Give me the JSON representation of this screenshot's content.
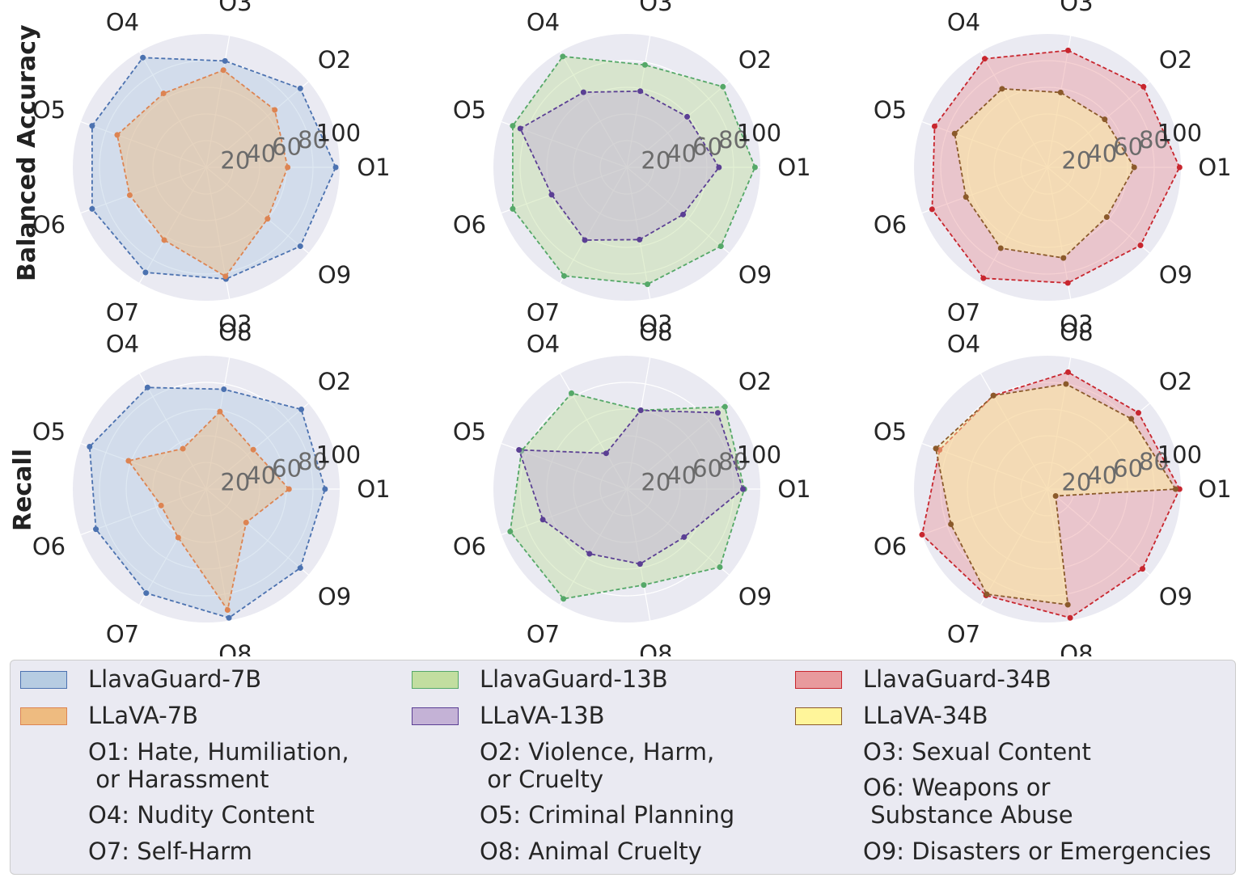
{
  "row_labels": [
    "Balanced Accuracy",
    "Recall"
  ],
  "chart_data": [
    {
      "type": "radar",
      "row": "Balanced Accuracy",
      "axes": [
        "O1",
        "O2",
        "O3",
        "O4",
        "O5",
        "O6",
        "O7",
        "O8",
        "O9"
      ],
      "rticks": [
        20,
        40,
        60,
        80,
        100
      ],
      "rlim": [
        0,
        100
      ],
      "series": [
        {
          "name": "LlavaGuard-7B",
          "values": [
            97,
            92,
            81,
            95,
            91,
            91,
            91,
            85,
            92
          ],
          "color": "#4c72b0",
          "fill": "#b6cce2"
        },
        {
          "name": "LLaVA-7B",
          "values": [
            61,
            67,
            74,
            64,
            71,
            61,
            63,
            83,
            60
          ],
          "color": "#dd8452",
          "fill": "#eebb80"
        }
      ]
    },
    {
      "type": "radar",
      "row": "Balanced Accuracy",
      "axes": [
        "O1",
        "O2",
        "O3",
        "O4",
        "O5",
        "O6",
        "O7",
        "O8",
        "O9"
      ],
      "rticks": [
        20,
        40,
        60,
        80,
        100
      ],
      "rlim": [
        0,
        100
      ],
      "series": [
        {
          "name": "LlavaGuard-13B",
          "values": [
            96,
            94,
            78,
            96,
            91,
            91,
            94,
            89,
            92
          ],
          "color": "#55a868",
          "fill": "#c2dea0"
        },
        {
          "name": "LLaVA-13B",
          "values": [
            69,
            59,
            58,
            65,
            85,
            60,
            63,
            55,
            55
          ],
          "color": "#5b3f94",
          "fill": "#c4b2d6"
        }
      ]
    },
    {
      "type": "radar",
      "row": "Balanced Accuracy",
      "axes": [
        "O1",
        "O2",
        "O3",
        "O4",
        "O5",
        "O6",
        "O7",
        "O8",
        "O9"
      ],
      "rticks": [
        20,
        40,
        60,
        80,
        100
      ],
      "rlim": [
        0,
        100
      ],
      "series": [
        {
          "name": "LlavaGuard-34B",
          "values": [
            99,
            94,
            89,
            94,
            90,
            92,
            96,
            88,
            91
          ],
          "color": "#c8262e",
          "fill": "#e89a9d"
        },
        {
          "name": "LLaVA-34B",
          "values": [
            65,
            56,
            57,
            68,
            74,
            65,
            70,
            69,
            58
          ],
          "color": "#8b5a2b",
          "fill": "#fff59a"
        }
      ]
    },
    {
      "type": "radar",
      "row": "Recall",
      "axes": [
        "O1",
        "O2",
        "O3",
        "O4",
        "O5",
        "O6",
        "O7",
        "O8",
        "O9"
      ],
      "rticks": [
        20,
        40,
        60,
        80,
        100
      ],
      "rlim": [
        0,
        100
      ],
      "series": [
        {
          "name": "LlavaGuard-7B",
          "values": [
            89,
            93,
            76,
            88,
            93,
            88,
            90,
            98,
            92
          ],
          "color": "#4c72b0",
          "fill": "#b6cce2"
        },
        {
          "name": "LLaVA-7B",
          "values": [
            62,
            46,
            59,
            35,
            62,
            36,
            42,
            92,
            39
          ],
          "color": "#dd8452",
          "fill": "#eebb80"
        }
      ]
    },
    {
      "type": "radar",
      "row": "Recall",
      "axes": [
        "O1",
        "O2",
        "O3",
        "O4",
        "O5",
        "O6",
        "O7",
        "O8",
        "O9"
      ],
      "rticks": [
        20,
        40,
        60,
        80,
        100
      ],
      "rlim": [
        0,
        100
      ],
      "series": [
        {
          "name": "LlavaGuard-13B",
          "values": [
            88,
            96,
            60,
            83,
            84,
            93,
            95,
            73,
            91
          ],
          "color": "#55a868",
          "fill": "#c2dea0"
        },
        {
          "name": "LLaVA-13B",
          "values": [
            87,
            89,
            60,
            31,
            86,
            67,
            56,
            57,
            56
          ],
          "color": "#5b3f94",
          "fill": "#c4b2d6"
        }
      ]
    },
    {
      "type": "radar",
      "row": "Recall",
      "axes": [
        "O1",
        "O2",
        "O3",
        "O4",
        "O5",
        "O6",
        "O7",
        "O8",
        "O9"
      ],
      "rticks": [
        20,
        40,
        60,
        80,
        100
      ],
      "rlim": [
        0,
        100
      ],
      "series": [
        {
          "name": "LlavaGuard-34B",
          "values": [
            99,
            89,
            89,
            81,
            86,
            100,
            92,
            98,
            93
          ],
          "color": "#c8262e",
          "fill": "#e89a9d"
        },
        {
          "name": "LLaVA-34B",
          "values": [
            96,
            82,
            80,
            81,
            89,
            77,
            91,
            88,
            8
          ],
          "color": "#8b5a2b",
          "fill": "#fff59a"
        }
      ]
    }
  ],
  "legend": {
    "entries": [
      {
        "label": "LlavaGuard-7B",
        "fill": "#b6cce2",
        "edge": "#4c72b0"
      },
      {
        "label": "LLaVA-7B",
        "fill": "#eebb80",
        "edge": "#dd8452"
      },
      {
        "label": "LlavaGuard-13B",
        "fill": "#c2dea0",
        "edge": "#55a868"
      },
      {
        "label": "LLaVA-13B",
        "fill": "#c4b2d6",
        "edge": "#5b3f94"
      },
      {
        "label": "LlavaGuard-34B",
        "fill": "#e89a9d",
        "edge": "#c8262e"
      },
      {
        "label": "LLaVA-34B",
        "fill": "#fff59a",
        "edge": "#8b5a2b"
      }
    ],
    "categories": [
      "O1: Hate, Humiliation,\n or Harassment",
      "O2: Violence, Harm,\n or Cruelty",
      "O3: Sexual Content",
      "O4: Nudity Content",
      "O5: Criminal Planning",
      "O6: Weapons or\n Substance Abuse",
      "O7: Self-Harm",
      "O8: Animal Cruelty",
      "O9: Disasters or Emergencies"
    ]
  }
}
